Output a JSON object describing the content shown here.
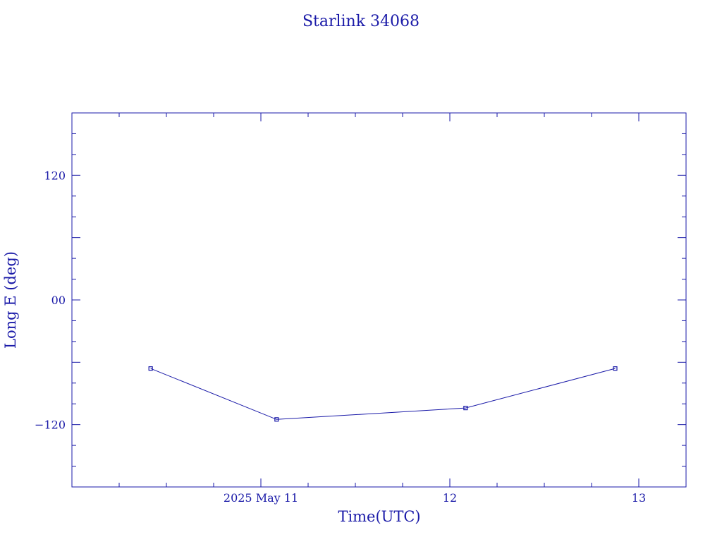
{
  "colors": {
    "ink": "#1a1aa8",
    "line": "#1a1aa8",
    "background": "#ffffff"
  },
  "chart_data": {
    "type": "line",
    "title": "Starlink 34068",
    "xlabel": "Time(UTC)",
    "ylabel": "Long E (deg)",
    "x_unit": "days",
    "x_tick_labels": [
      "2025 May 11",
      "12",
      "13"
    ],
    "x_tick_values": [
      "2025-05-11",
      "2025-05-12",
      "2025-05-13"
    ],
    "xlim": [
      "2025-05-10T00:00",
      "2025-05-13T06:00"
    ],
    "y_tick_labels": [
      "120",
      "00",
      "−120"
    ],
    "y_tick_values": [
      120,
      0,
      -120
    ],
    "ylim": [
      -180,
      180
    ],
    "grid": false,
    "legend": "none",
    "series": [
      {
        "marker": "square",
        "x": [
          "2025-05-10T10:00",
          "2025-05-11T02:00",
          "2025-05-12T02:00",
          "2025-05-12T21:00"
        ],
        "values": [
          -66,
          -115,
          -104,
          -66
        ]
      }
    ]
  }
}
